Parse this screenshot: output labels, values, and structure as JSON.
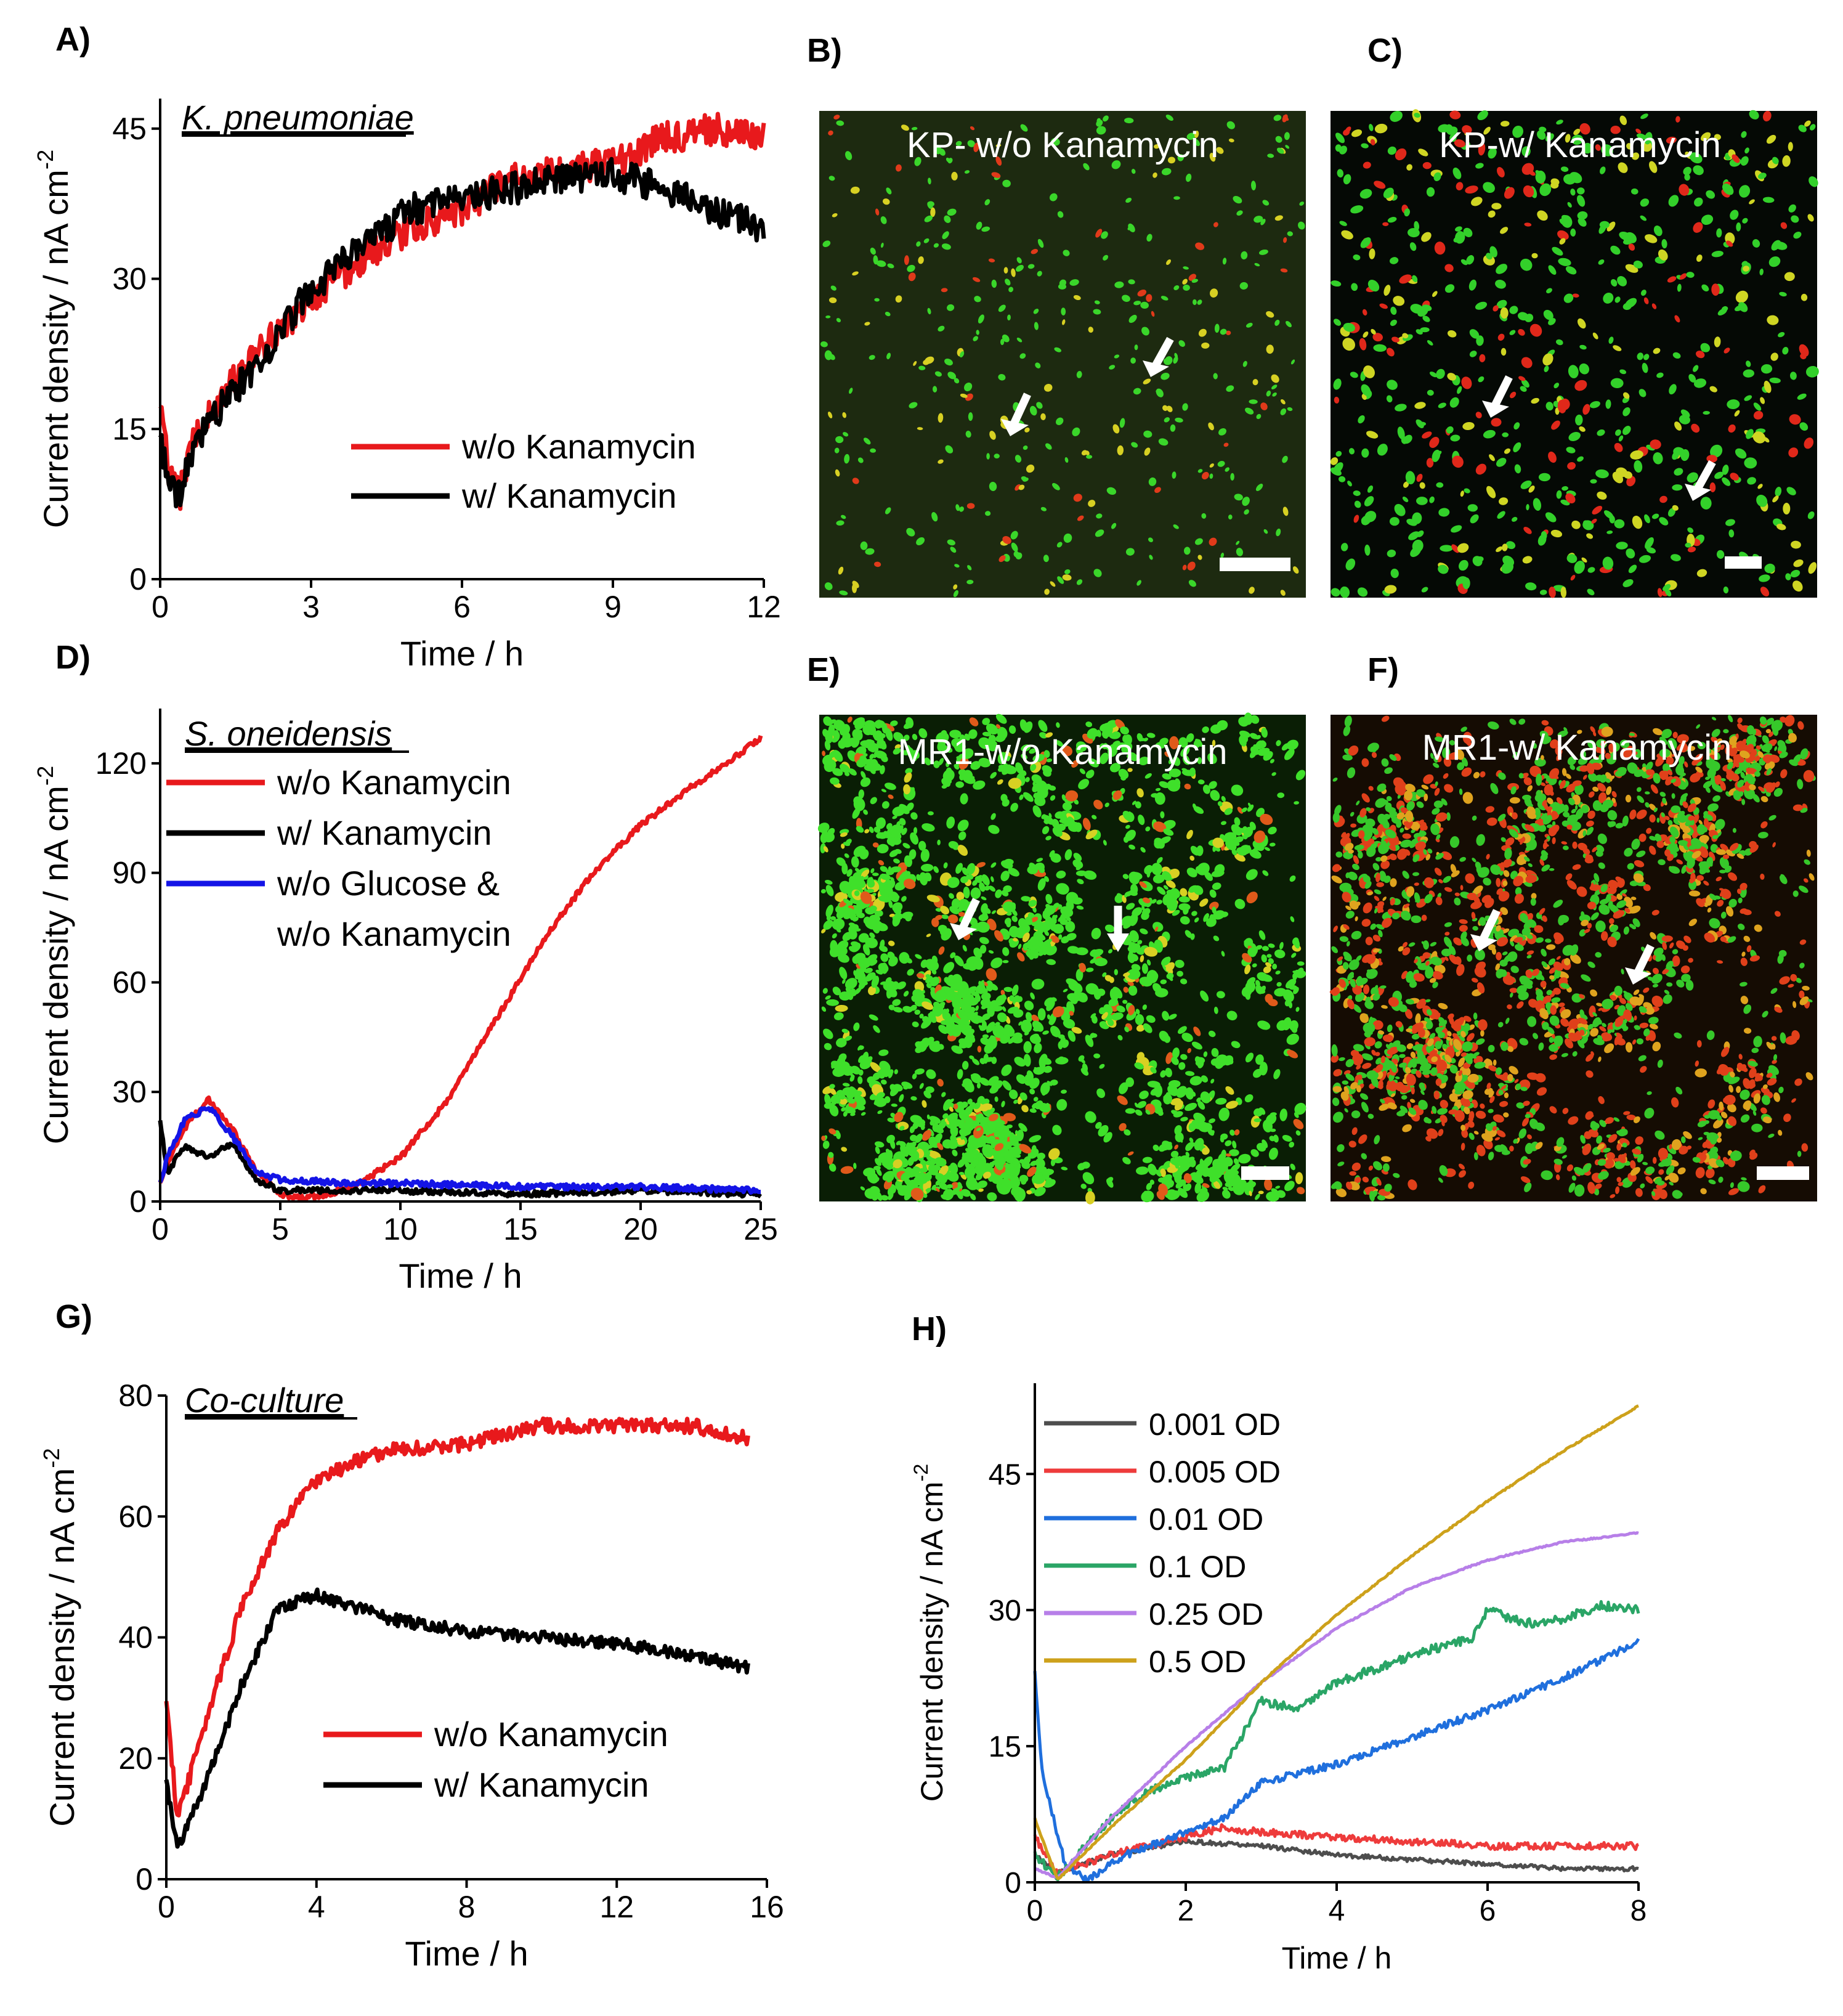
{
  "panels": {
    "A": {
      "label": "A)",
      "chart_data": {
        "type": "line",
        "annotation": "K. pneumoniae",
        "xlabel": "Time / h",
        "ylabel": "Current density / nA cm",
        "ylabel_sup": "-2",
        "xlim": [
          0,
          12
        ],
        "ylim": [
          0,
          48
        ],
        "xticks": [
          0,
          3,
          6,
          9,
          12
        ],
        "yticks": [
          0,
          15,
          30,
          45
        ],
        "legend": "center-right",
        "series": [
          {
            "name": "w/o Kanamycin",
            "color": "#e8191c",
            "noise": 1.6,
            "x": [
              0,
              0.2,
              0.4,
              0.6,
              1,
              2,
              3,
              4,
              5,
              6,
              7,
              8,
              9,
              10,
              11,
              12
            ],
            "y": [
              17,
              10,
              8.5,
              13,
              17,
              23,
              28,
              32,
              35,
              37,
              40,
              41,
              41.5,
              44,
              45,
              44
            ]
          },
          {
            "name": "w/ Kanamycin",
            "color": "#000000",
            "noise": 1.6,
            "x": [
              0,
              0.2,
              0.4,
              0.6,
              1,
              2,
              3,
              4,
              5,
              6,
              7,
              8,
              9,
              10,
              11,
              12
            ],
            "y": [
              14,
              9,
              8.5,
              12,
              16,
              22,
              29,
              33,
              37,
              38,
              39,
              40,
              40.5,
              39,
              37,
              35
            ]
          }
        ]
      }
    },
    "B": {
      "label": "B)",
      "title": "KP- w/o Kanamycin",
      "colors": {
        "background": "#1d2a10",
        "green": "#3ad62a",
        "red": "#e03a1a",
        "yellow": "#d7d023"
      }
    },
    "C": {
      "label": "C)",
      "title": "KP-w/ Kanamycin",
      "colors": {
        "background": "#050905",
        "green": "#33d02a",
        "red": "#e0281a",
        "yellow": "#cfd523"
      }
    },
    "D": {
      "label": "D)",
      "chart_data": {
        "type": "line",
        "annotation": "S. oneidensis",
        "xlabel": "Time / h",
        "ylabel": "Current density / nA cm",
        "ylabel_sup": "-2",
        "xlim": [
          0,
          25
        ],
        "ylim": [
          0,
          135
        ],
        "xticks": [
          0,
          5,
          10,
          15,
          20,
          25
        ],
        "yticks": [
          0,
          30,
          60,
          90,
          120
        ],
        "legend": "top-left",
        "series": [
          {
            "name": "w/o Kanamycin",
            "color": "#e8191c",
            "noise": 0.8,
            "x": [
              0,
              0.3,
              1,
              2,
              3,
              4,
              5,
              6,
              7,
              8,
              10,
              12,
              14,
              16,
              18,
              20,
              22,
              24,
              25
            ],
            "y": [
              5,
              10,
              20,
              28,
              20,
              8,
              2,
              1,
              2,
              4,
              12,
              28,
              50,
              72,
              90,
              103,
              113,
              122,
              127
            ]
          },
          {
            "name": "w/ Kanamycin",
            "color": "#000000",
            "noise": 0.8,
            "x": [
              0,
              0.3,
              1,
              2,
              3,
              4,
              5,
              7,
              10,
              15,
              20,
              25
            ],
            "y": [
              22,
              8,
              15,
              12,
              16,
              6,
              3,
              3,
              3,
              2,
              3,
              2
            ]
          },
          {
            "name": "w/o Glucose & w/o Kanamycin",
            "color": "#1414e6",
            "noise": 0.8,
            "x": [
              0,
              0.3,
              1,
              2,
              3,
              4,
              5,
              8,
              10,
              15,
              20,
              25
            ],
            "y": [
              5,
              12,
              22,
              26,
              18,
              8,
              6,
              5,
              5,
              4,
              4,
              3
            ]
          }
        ]
      }
    },
    "E": {
      "label": "E)",
      "title": "MR1-w/o Kanamycin",
      "colors": {
        "background": "#0a1e05",
        "green": "#3fe02a",
        "red": "#e05a1a",
        "yellow": "#d8d023"
      }
    },
    "F": {
      "label": "F)",
      "title": "MR1-w/ Kanamycin",
      "colors": {
        "background": "#150c03",
        "green": "#36c82a",
        "red": "#e0401a",
        "yellow": "#dfa31e"
      }
    },
    "G": {
      "label": "G)",
      "chart_data": {
        "type": "line",
        "annotation": "Co-culture",
        "xlabel": "Time / h",
        "ylabel": "Current density / nA cm",
        "ylabel_sup": "-2",
        "xlim": [
          0,
          16
        ],
        "ylim": [
          0,
          80
        ],
        "xticks": [
          0,
          4,
          8,
          12,
          16
        ],
        "yticks": [
          0,
          20,
          40,
          60,
          80
        ],
        "legend": "center-right",
        "series": [
          {
            "name": "w/o Kanamycin",
            "color": "#e8191c",
            "noise": 1.2,
            "x": [
              0,
              0.3,
              1,
              2,
              3,
              4,
              5,
              6,
              8,
              10,
              12,
              14,
              15.5
            ],
            "y": [
              29,
              10,
              25,
              45,
              58,
              66,
              69,
              71,
              72,
              75,
              75,
              75,
              73
            ]
          },
          {
            "name": "w/ Kanamycin",
            "color": "#000000",
            "noise": 1.0,
            "x": [
              0,
              0.3,
              1,
              2,
              3,
              4,
              5,
              6,
              8,
              10,
              12,
              14,
              15.5
            ],
            "y": [
              16,
              5,
              15,
              32,
              45,
              47,
              45,
              43,
              41,
              40,
              39,
              37,
              35
            ]
          }
        ]
      }
    },
    "H": {
      "label": "H)",
      "chart_data": {
        "type": "line",
        "xlabel": "Time / h",
        "ylabel": "Current density / nA cm",
        "ylabel_sup": "-2",
        "xlim": [
          0,
          8
        ],
        "ylim": [
          0,
          55
        ],
        "xticks": [
          0,
          2,
          4,
          6,
          8
        ],
        "yticks": [
          0,
          15,
          30,
          45
        ],
        "legend": "top-left",
        "series": [
          {
            "name": "0.001 OD",
            "color": "#4d4d4d",
            "noise": 0.25,
            "x": [
              0,
              0.3,
              1,
              2,
              3,
              4,
              5,
              6,
              7,
              8
            ],
            "y": [
              3,
              1,
              3,
              4.5,
              4,
              3,
              2.5,
              2,
              1.5,
              1.5
            ]
          },
          {
            "name": "0.005 OD",
            "color": "#ee3b3b",
            "noise": 0.4,
            "x": [
              0,
              0.3,
              1,
              2,
              2.5,
              3,
              4,
              5,
              6,
              7,
              8
            ],
            "y": [
              5,
              1,
              3,
              5,
              6,
              5.5,
              5,
              4.5,
              4,
              4,
              4
            ]
          },
          {
            "name": "0.01 OD",
            "color": "#1f6fdd",
            "noise": 0.4,
            "x": [
              0,
              0.1,
              0.4,
              0.7,
              1.2,
              2,
              2.5,
              3,
              4,
              5,
              6,
              7,
              8
            ],
            "y": [
              23,
              12,
              2,
              0.3,
              3,
              5.5,
              7,
              11,
              13,
              16,
              19,
              22.5,
              26.5
            ]
          },
          {
            "name": "0.1 OD",
            "color": "#2aa566",
            "noise": 0.5,
            "x": [
              0,
              0.3,
              1,
              1.5,
              2,
              2.5,
              2.8,
              3,
              3.5,
              4,
              5,
              5.8,
              6,
              6.5,
              7,
              7.5,
              8
            ],
            "y": [
              3,
              0.5,
              7,
              10,
              11.5,
              12.5,
              17,
              20,
              19,
              22,
              25,
              27,
              30,
              28.5,
              29,
              30.5,
              30
            ]
          },
          {
            "name": "0.25 OD",
            "color": "#b77fe8",
            "noise": 0.08,
            "x": [
              0,
              0.3,
              1,
              2,
              3,
              4,
              5,
              6,
              7,
              8
            ],
            "y": [
              1.5,
              0.5,
              7,
              15,
              22,
              28,
              32.5,
              35.5,
              37.5,
              38.5
            ]
          },
          {
            "name": "0.5 OD",
            "color": "#cda11b",
            "noise": 0.08,
            "x": [
              0,
              0.3,
              1,
              2,
              3,
              4,
              5,
              6,
              7,
              8
            ],
            "y": [
              7,
              0.3,
              6,
              13.5,
              22,
              29.5,
              36,
              42,
              47.5,
              52.5
            ]
          }
        ]
      }
    }
  }
}
